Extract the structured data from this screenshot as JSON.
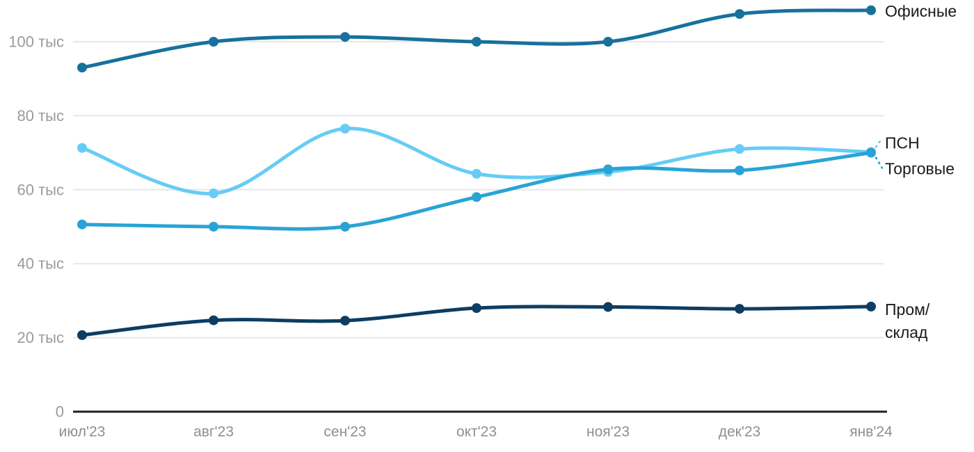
{
  "chart_data": {
    "type": "line",
    "title": "",
    "xlabel": "",
    "ylabel": "",
    "unit": "тыс",
    "categories": [
      "июл'23",
      "авг'23",
      "сен'23",
      "окт'23",
      "ноя'23",
      "дек'23",
      "янв'24"
    ],
    "y_ticks": [
      {
        "value": 0,
        "label": "0"
      },
      {
        "value": 20,
        "label": "20 тыс"
      },
      {
        "value": 40,
        "label": "40 тыс"
      },
      {
        "value": 60,
        "label": "60 тыс"
      },
      {
        "value": 80,
        "label": "80 тыс"
      },
      {
        "value": 100,
        "label": "100 тыс"
      }
    ],
    "ylim": [
      0,
      112
    ],
    "grid": "horizontal",
    "legend_position": "right-end-labels",
    "series": [
      {
        "name": "Офисные",
        "color": "#17719c",
        "values": [
          93,
          100,
          101.3,
          100,
          100,
          107.5,
          108.5
        ],
        "end_label": {
          "lines": [
            "Офисные"
          ],
          "dy": 1,
          "leader": false
        }
      },
      {
        "name": "ПСН",
        "color": "#66ccf5",
        "values": [
          71.3,
          59,
          76.5,
          64.3,
          64.8,
          71,
          70.2
        ],
        "end_label": {
          "lines": [
            "ПСН"
          ],
          "dy": -13,
          "leader": true,
          "leader_dy": -20
        },
        "draw_under": true
      },
      {
        "name": "Торговые",
        "color": "#29a3d6",
        "values": [
          50.6,
          50,
          50,
          58,
          65.5,
          65.2,
          70
        ],
        "end_label": {
          "lines": [
            "Торговые"
          ],
          "dy": 23,
          "leader": true,
          "leader_dy": 22
        }
      },
      {
        "name": "Пром/склад",
        "color": "#0d3d63",
        "values": [
          20.7,
          24.7,
          24.6,
          28,
          28.3,
          27.8,
          28.4
        ],
        "end_label": {
          "lines": [
            "Пром/",
            "склад"
          ],
          "dy": 4,
          "leader": false
        }
      }
    ],
    "colors": {
      "grid_line": "#e7e7e7",
      "axis_line": "#1f1f1f",
      "y_tick_text": "#9b9b9b",
      "x_tick_text": "#8f8f8f",
      "end_label_text": "#1a1a1a",
      "background": "#ffffff"
    }
  }
}
